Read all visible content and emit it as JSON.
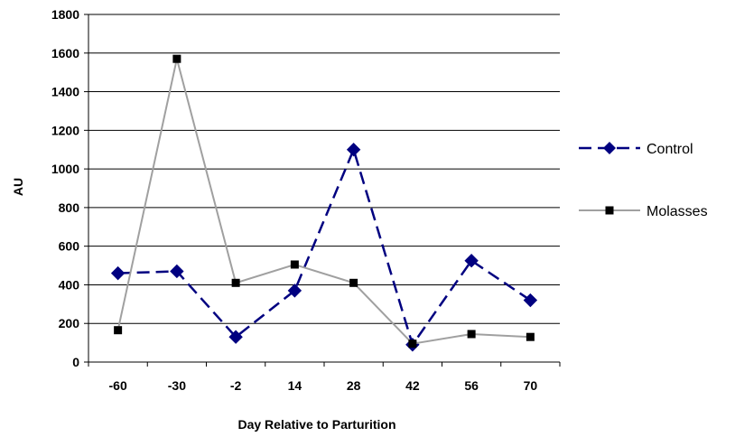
{
  "chart_data": {
    "type": "line",
    "title": "",
    "xlabel": "Day Relative to Parturition",
    "ylabel": "AU",
    "categories": [
      "-60",
      "-30",
      "-2",
      "14",
      "28",
      "42",
      "56",
      "70"
    ],
    "ylim": [
      0,
      1800
    ],
    "yticks": [
      0,
      200,
      400,
      600,
      800,
      1000,
      1200,
      1400,
      1600,
      1800
    ],
    "grid": true,
    "legend_position": "right",
    "series": [
      {
        "name": "Control",
        "color": "#000080",
        "line_style": "dashed",
        "marker": "diamond",
        "values": [
          460,
          470,
          130,
          370,
          1100,
          90,
          525,
          320
        ]
      },
      {
        "name": "Molasses",
        "color": "#a0a0a0",
        "marker_color": "#000000",
        "line_style": "solid",
        "marker": "square",
        "values": [
          165,
          1570,
          410,
          505,
          410,
          95,
          145,
          130
        ]
      }
    ]
  }
}
